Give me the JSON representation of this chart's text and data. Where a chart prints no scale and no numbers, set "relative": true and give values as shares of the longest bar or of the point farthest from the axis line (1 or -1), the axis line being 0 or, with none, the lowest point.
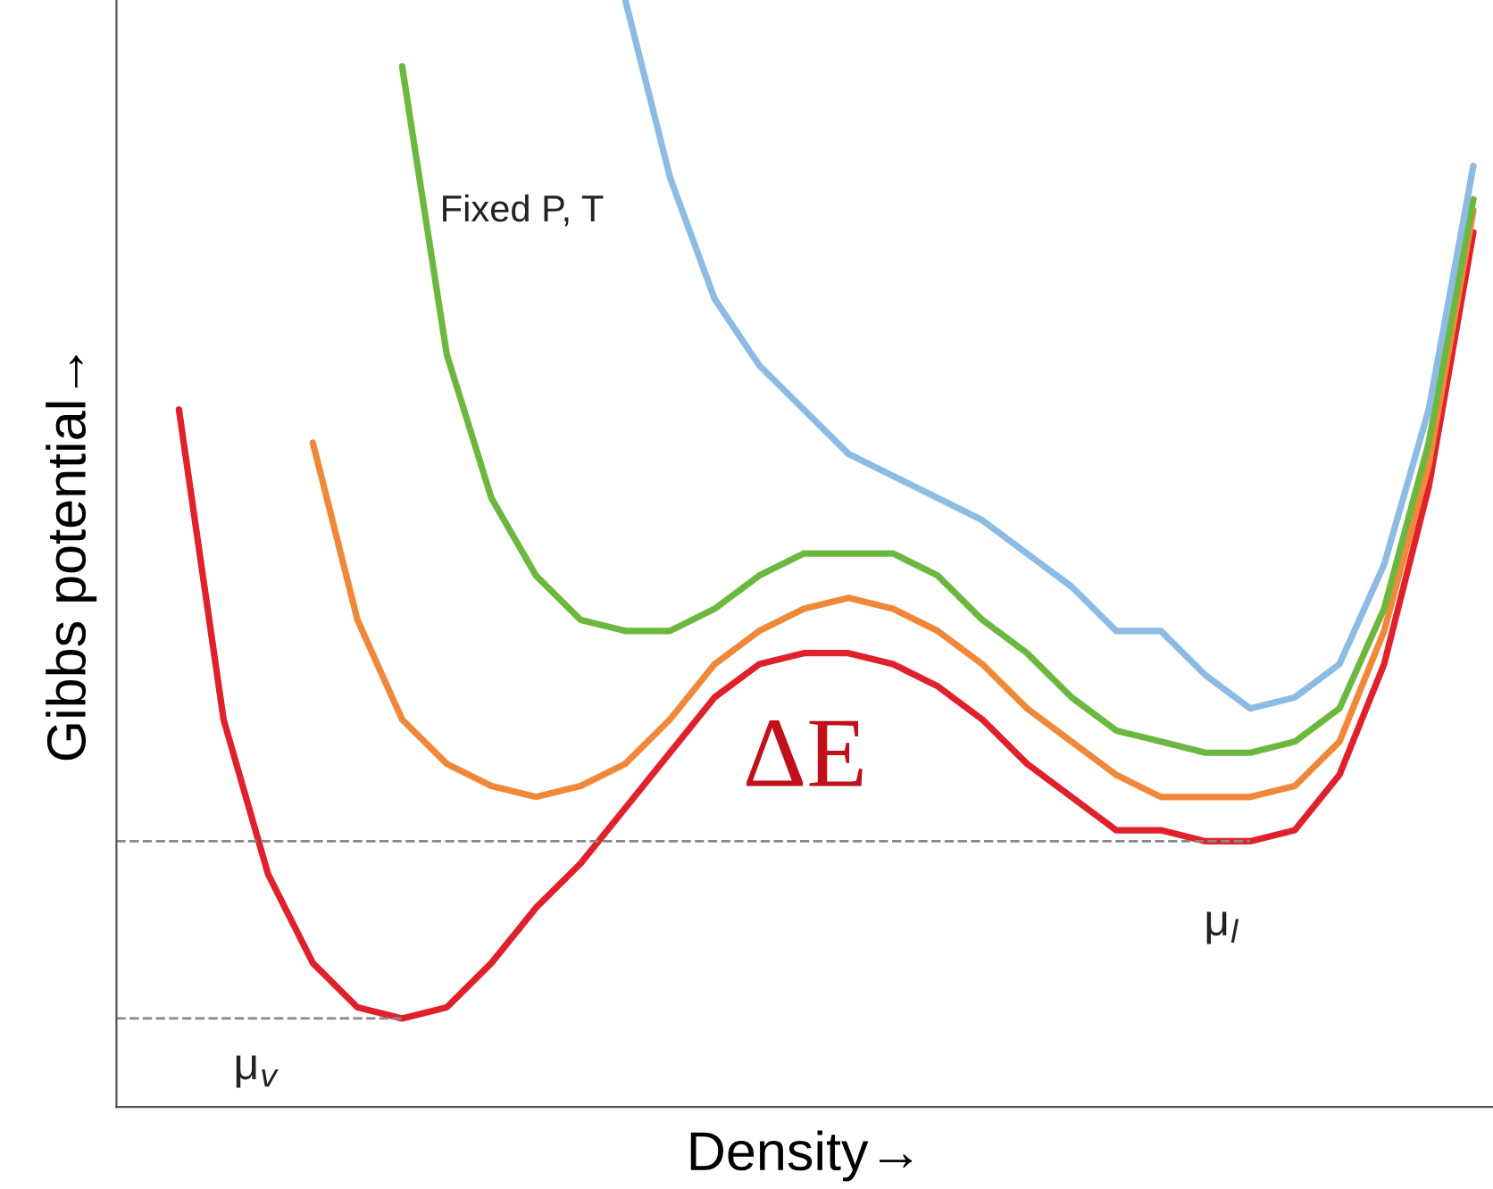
{
  "chart_data": {
    "type": "line",
    "relative": true,
    "xlabel": "Density→",
    "ylabel": "Gibbs potential→",
    "categories": [
      null,
      null,
      null,
      null,
      null,
      null,
      null,
      null,
      null,
      null,
      null,
      null,
      null,
      null,
      null,
      null,
      null,
      null,
      null,
      null,
      null,
      null,
      null,
      null,
      null,
      null,
      null,
      null,
      null,
      null,
      null
    ],
    "series": [
      {
        "color": "#e0202a",
        "values": [
          null,
          0.63,
          0.35,
          0.21,
          0.13,
          0.09,
          0.08,
          0.09,
          0.13,
          0.18,
          0.22,
          0.27,
          0.32,
          0.37,
          0.4,
          0.41,
          0.41,
          0.4,
          0.38,
          0.35,
          0.31,
          0.28,
          0.25,
          0.25,
          0.24,
          0.24,
          0.25,
          0.3,
          0.4,
          0.56,
          0.79
        ]
      },
      {
        "color": "#f0883a",
        "values": [
          null,
          null,
          null,
          null,
          0.6,
          0.44,
          0.35,
          0.31,
          0.29,
          0.28,
          0.29,
          0.31,
          0.35,
          0.4,
          0.43,
          0.45,
          0.46,
          0.45,
          0.43,
          0.4,
          0.36,
          0.33,
          0.3,
          0.28,
          0.28,
          0.28,
          0.29,
          0.33,
          0.43,
          0.58,
          0.81
        ]
      },
      {
        "color": "#6cb83f",
        "values": [
          null,
          null,
          null,
          null,
          null,
          null,
          0.94,
          0.68,
          0.55,
          0.48,
          0.44,
          0.43,
          0.43,
          0.45,
          0.48,
          0.5,
          0.5,
          0.5,
          0.48,
          0.44,
          0.41,
          0.37,
          0.34,
          0.33,
          0.32,
          0.32,
          0.33,
          0.36,
          0.45,
          0.6,
          0.82
        ]
      },
      {
        "color": "#8cbbe3",
        "values": [
          null,
          null,
          null,
          null,
          null,
          null,
          null,
          null,
          null,
          null,
          null,
          1.0,
          0.84,
          0.73,
          0.67,
          0.63,
          0.59,
          0.57,
          0.55,
          0.53,
          0.5,
          0.47,
          0.43,
          0.43,
          0.39,
          0.36,
          0.37,
          0.4,
          0.49,
          0.63,
          0.85
        ]
      }
    ],
    "ref_lines": [
      {
        "axis": "y",
        "value": 0.24,
        "color": "#888888",
        "line_style": "dashed"
      },
      {
        "axis": "y",
        "value": 0.08,
        "color": "#888888",
        "line_style": "dashed"
      }
    ],
    "annotations": [
      "Fixed P, T",
      "ΔE",
      "μ$_{v}$",
      "μ$_{l}$"
    ]
  }
}
